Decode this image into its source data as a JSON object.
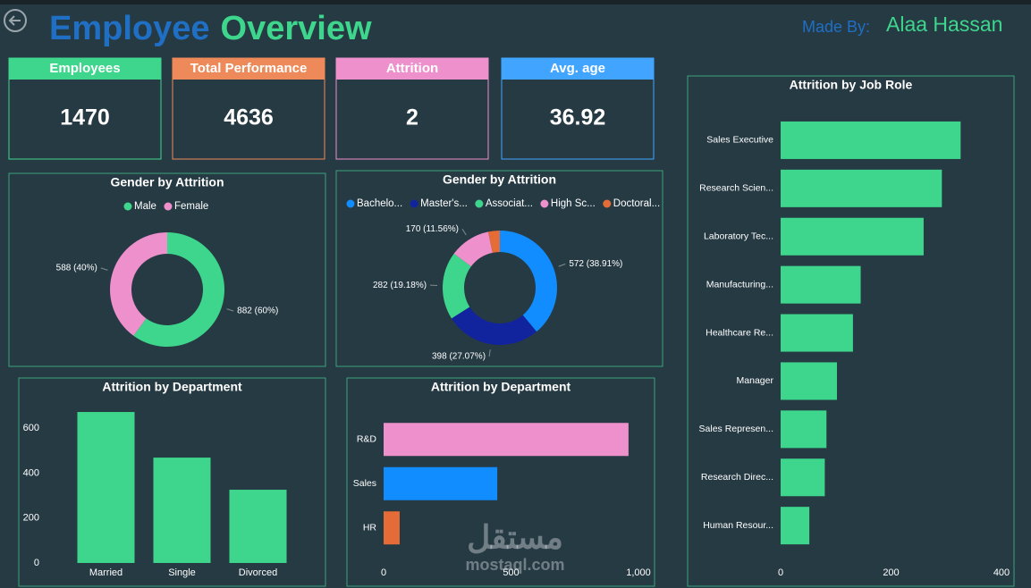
{
  "header": {
    "title": [
      "Employee",
      "Overview"
    ],
    "title_colors": [
      "#1f6fc5",
      "#3dd68c"
    ],
    "made_by_label": "Made  By:",
    "made_by_name": "Alaa Hassan"
  },
  "kpis": [
    {
      "label": "Employees",
      "value": 1470,
      "color": "#3dd68c"
    },
    {
      "label": "Total Performance",
      "value": 4636,
      "color": "#ee8a5a"
    },
    {
      "label": "Attrition",
      "value": 2,
      "color": "#ee90cc"
    },
    {
      "label": "Avg. age",
      "value": 36.92,
      "color": "#41a5ff"
    }
  ],
  "watermark": [
    "مستقل",
    "mostaql.com"
  ],
  "chart_data": [
    {
      "type": "donut",
      "title": "Gender by Attrition",
      "categories": [
        "Male",
        "Female"
      ],
      "values": [
        882,
        588
      ],
      "value_labels": [
        "882 (60%)",
        "588 (40%)"
      ],
      "colors": [
        "#3dd68c",
        "#ee90cc"
      ]
    },
    {
      "type": "donut",
      "title": "Gender by Attrition",
      "categories": [
        "Bachelo...",
        "Master's...",
        "Associat...",
        "High Sc...",
        "Doctoral..."
      ],
      "values": [
        572,
        398,
        282,
        170,
        48
      ],
      "value_labels": [
        "572 (38.91%)",
        "398 (27.07%)",
        "282 (19.18%)",
        "170 (11.56%)",
        null
      ],
      "colors": [
        "#118dff",
        "#12239e",
        "#3dd68c",
        "#ee90cc",
        "#e66c37"
      ]
    },
    {
      "type": "column",
      "title": "Attrition by Department",
      "categories": [
        "Married",
        "Single",
        "Divorced"
      ],
      "values": [
        672,
        469,
        326
      ],
      "color": "#3dd68c",
      "ylim": [
        0,
        700
      ],
      "yticks": [
        0,
        200,
        400,
        600
      ]
    },
    {
      "type": "hbar",
      "title": "Attrition by Department",
      "categories": [
        "R&D",
        "Sales",
        "HR"
      ],
      "values": [
        961,
        446,
        63
      ],
      "colors": [
        "#ee90cc",
        "#118dff",
        "#e66c37"
      ],
      "xlim": [
        0,
        1000
      ],
      "xticks": [
        0,
        500,
        {
          "value": 1000,
          "label": "1,000"
        }
      ]
    },
    {
      "type": "hbar",
      "title": "Attrition by Job Role",
      "categories": [
        "Sales Executive",
        "Research Scien...",
        "Laboratory Tec...",
        "Manufacturing...",
        "Healthcare Re...",
        "Manager",
        "Sales Represen...",
        "Research Direc...",
        "Human Resour..."
      ],
      "values": [
        326,
        292,
        259,
        145,
        131,
        102,
        83,
        80,
        52
      ],
      "color": "#3dd68c",
      "xlim": [
        0,
        400
      ],
      "xticks": [
        0,
        200,
        400
      ]
    }
  ]
}
